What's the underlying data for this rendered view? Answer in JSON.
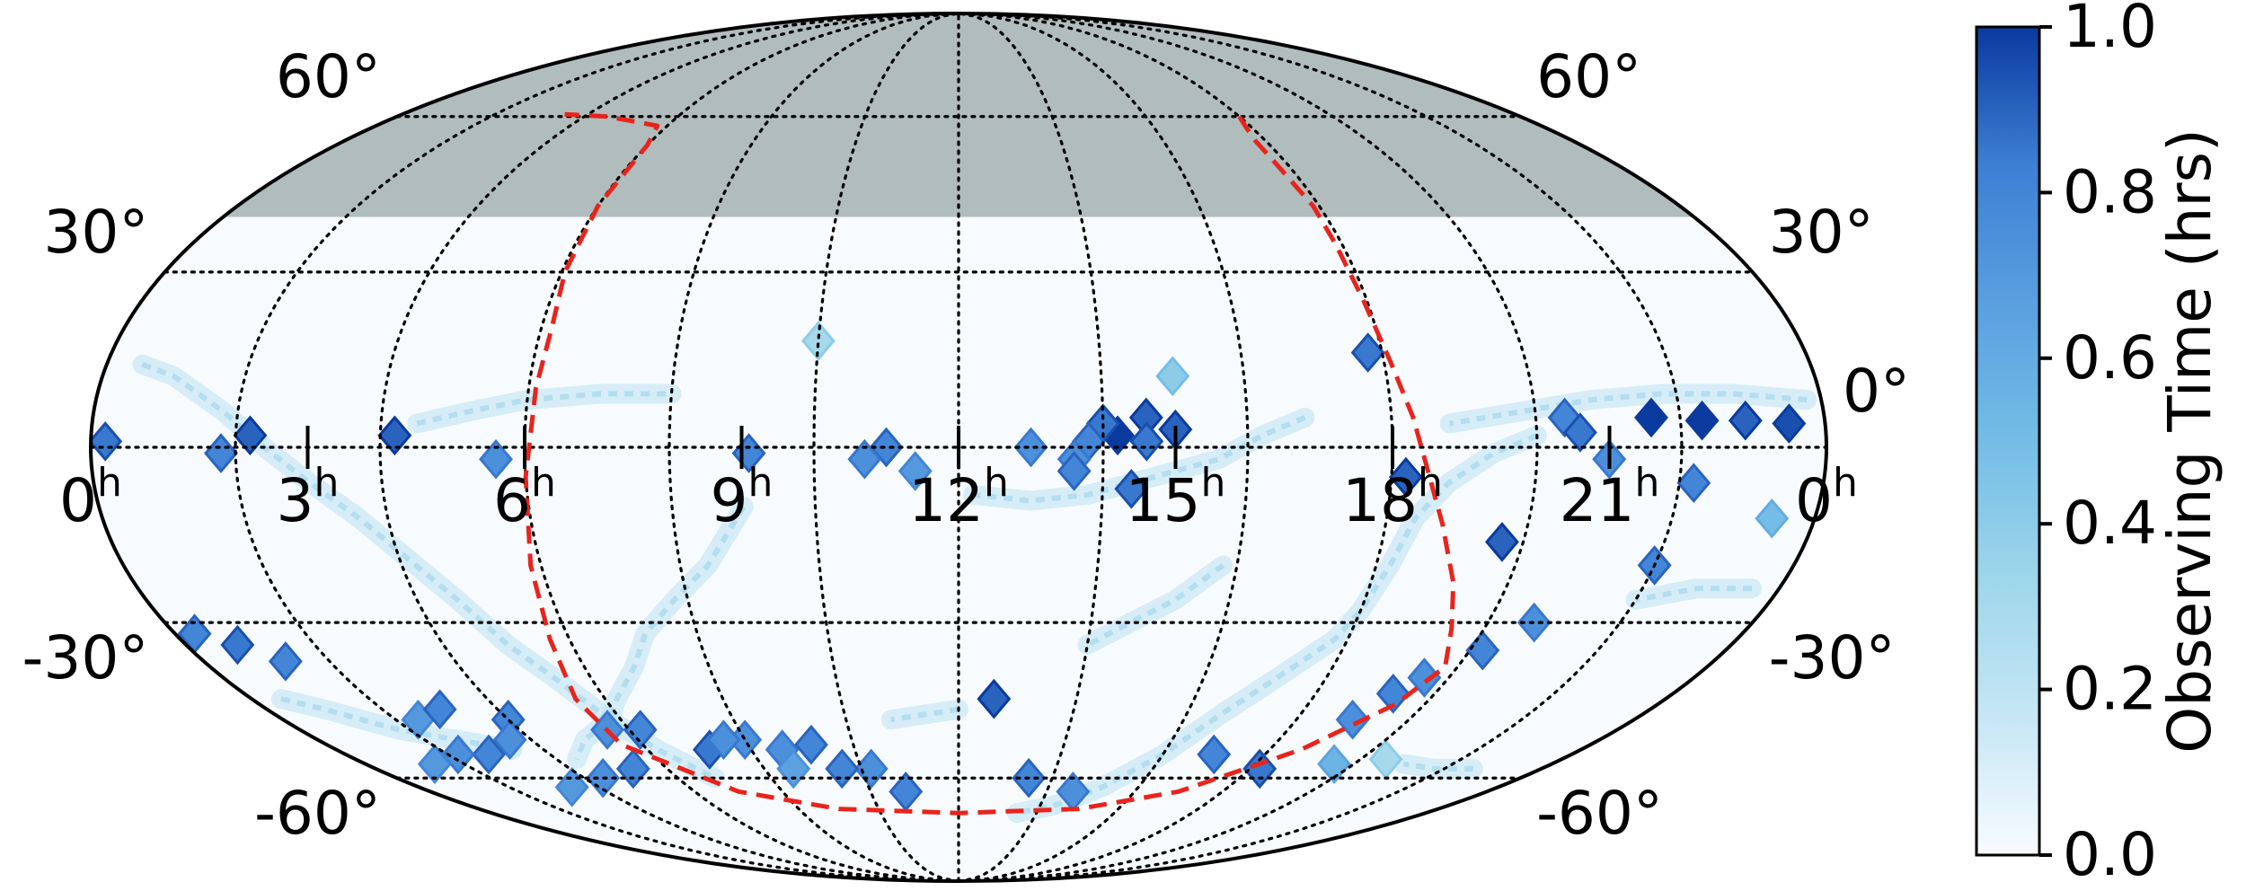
{
  "chart_data": {
    "type": "heatmap",
    "projection": "mollweide",
    "ra_ticks": [
      {
        "hours": 0,
        "text": "0",
        "sup": "h"
      },
      {
        "hours": 21,
        "text": "21",
        "sup": "h"
      },
      {
        "hours": 18,
        "text": "18",
        "sup": "h"
      },
      {
        "hours": 15,
        "text": "15",
        "sup": "h"
      },
      {
        "hours": 12,
        "text": "12",
        "sup": "h"
      },
      {
        "hours": 9,
        "text": "9",
        "sup": "h"
      },
      {
        "hours": 6,
        "text": "6",
        "sup": "h"
      },
      {
        "hours": 3,
        "text": "3",
        "sup": "h"
      },
      {
        "hours": 0,
        "text": "0",
        "sup": "h"
      }
    ],
    "dec_ticks": [
      {
        "deg": 60,
        "text": "60°"
      },
      {
        "deg": 30,
        "text": "30°"
      },
      {
        "deg": 0,
        "text": "0°"
      },
      {
        "deg": -30,
        "text": "-30°"
      },
      {
        "deg": -60,
        "text": "-60°"
      }
    ],
    "grid": true,
    "masked_region": {
      "dec_min": 40,
      "dec_max": 90,
      "color": "#b1bcbc"
    },
    "boundary_curve": {
      "style": "dashed",
      "color": "#e8241c",
      "points": [
        [
          18.0,
          60
        ],
        [
          17.9,
          58
        ],
        [
          17.8,
          55
        ],
        [
          17.8,
          50
        ],
        [
          17.9,
          42
        ],
        [
          17.9,
          35
        ],
        [
          17.95,
          25
        ],
        [
          18.1,
          14
        ],
        [
          18.3,
          5
        ],
        [
          18.5,
          -4
        ],
        [
          18.8,
          -13
        ],
        [
          19.2,
          -23
        ],
        [
          19.5,
          -31
        ],
        [
          19.8,
          -38
        ],
        [
          19.5,
          -45
        ],
        [
          18.6,
          -54
        ],
        [
          17.0,
          -63
        ],
        [
          15.0,
          -67
        ],
        [
          12.0,
          -68
        ],
        [
          9.0,
          -67
        ],
        [
          7.0,
          -63
        ],
        [
          5.6,
          -53
        ],
        [
          5.5,
          -44
        ],
        [
          5.7,
          -33
        ],
        [
          5.85,
          -20
        ],
        [
          6.0,
          -5
        ],
        [
          6.1,
          10
        ],
        [
          6.15,
          20
        ],
        [
          6.05,
          30
        ],
        [
          6.0,
          42
        ],
        [
          6.0,
          54
        ],
        [
          5.8,
          58
        ],
        [
          4.5,
          60
        ],
        [
          3.5,
          60.5
        ]
      ]
    },
    "pointings": [
      [
        21.6,
        5,
        1.0
      ],
      [
        22.3,
        4.5,
        1.0
      ],
      [
        22.9,
        4.5,
        0.9
      ],
      [
        23.5,
        4,
        0.95
      ],
      [
        20.4,
        5,
        0.8
      ],
      [
        20.6,
        2.5,
        0.85
      ],
      [
        21.0,
        -2,
        0.75
      ],
      [
        22.2,
        -6,
        0.8
      ],
      [
        23.4,
        -12,
        0.5
      ],
      [
        19.7,
        -16,
        0.9
      ],
      [
        18.2,
        -5,
        0.9
      ],
      [
        17.8,
        16,
        0.85
      ],
      [
        22.0,
        -20,
        0.8
      ],
      [
        20.7,
        -30,
        0.75
      ],
      [
        20.2,
        -35,
        0.8
      ],
      [
        19.6,
        -40,
        0.75
      ],
      [
        19.3,
        -43,
        0.8
      ],
      [
        19.0,
        -48,
        0.75
      ],
      [
        17.0,
        -55,
        0.8
      ],
      [
        18.2,
        -58,
        0.85
      ],
      [
        19.6,
        -57,
        0.55
      ],
      [
        20.5,
        -56,
        0.3
      ],
      [
        15.0,
        3,
        0.9
      ],
      [
        14.6,
        5,
        0.9
      ],
      [
        14.2,
        2,
        1.0
      ],
      [
        14.0,
        4,
        0.85
      ],
      [
        13.8,
        1,
        0.8
      ],
      [
        14.6,
        1,
        0.85
      ],
      [
        13.6,
        -2,
        0.75
      ],
      [
        14.4,
        -7,
        0.85
      ],
      [
        13.6,
        -4,
        0.8
      ],
      [
        13.0,
        0,
        0.75
      ],
      [
        15.0,
        12,
        0.4
      ],
      [
        11.0,
        0,
        0.8
      ],
      [
        10.7,
        -2,
        0.75
      ],
      [
        11.4,
        -4,
        0.7
      ],
      [
        9.1,
        -1,
        0.8
      ],
      [
        12.6,
        -44,
        0.9
      ],
      [
        10.0,
        18,
        0.3
      ],
      [
        13.5,
        -60,
        0.8
      ],
      [
        14.6,
        -63,
        0.75
      ],
      [
        10.8,
        -63,
        0.8
      ],
      [
        10.2,
        -58,
        0.75
      ],
      [
        9.6,
        -58,
        0.8
      ],
      [
        8.6,
        -54,
        0.75
      ],
      [
        9.2,
        -53,
        0.8
      ],
      [
        8.0,
        -52,
        0.75
      ],
      [
        8.6,
        -58,
        0.65
      ],
      [
        7.2,
        -54,
        0.85
      ],
      [
        7.6,
        -52,
        0.75
      ],
      [
        6.2,
        -50,
        0.8
      ],
      [
        5.6,
        -50,
        0.75
      ],
      [
        4.0,
        -48,
        0.8
      ],
      [
        3.6,
        -52,
        0.75
      ],
      [
        2.8,
        -55,
        0.8
      ],
      [
        2.2,
        -55,
        0.75
      ],
      [
        1.4,
        -57,
        0.7
      ],
      [
        2.4,
        -48,
        0.7
      ],
      [
        3.0,
        -46,
        0.8
      ],
      [
        5.6,
        -2,
        0.75
      ],
      [
        4.2,
        2,
        0.9
      ],
      [
        2.2,
        2,
        0.9
      ],
      [
        1.8,
        -1,
        0.8
      ],
      [
        0.2,
        1,
        0.85
      ],
      [
        0.8,
        -34,
        0.85
      ],
      [
        0.3,
        -32,
        0.8
      ],
      [
        1.3,
        -37,
        0.8
      ],
      [
        5.3,
        -58,
        0.8
      ],
      [
        4.4,
        -60,
        0.75
      ],
      [
        3.4,
        -62,
        0.7
      ]
    ],
    "faint_tracks": [
      [
        [
          23.8,
          8
        ],
        [
          22.8,
          9
        ],
        [
          21.8,
          9
        ],
        [
          20.8,
          8
        ],
        [
          19.8,
          6
        ],
        [
          18.8,
          4
        ]
      ],
      [
        [
          20.0,
          2
        ],
        [
          19.4,
          -1
        ],
        [
          18.8,
          -6
        ],
        [
          18.4,
          -12
        ],
        [
          18.2,
          -20
        ],
        [
          18.0,
          -28
        ],
        [
          17.8,
          -33
        ],
        [
          17.2,
          -40
        ],
        [
          16.6,
          -47
        ],
        [
          16.0,
          -55
        ],
        [
          15.2,
          -62
        ],
        [
          14.4,
          -66
        ],
        [
          13.5,
          -68
        ]
      ],
      [
        [
          16.8,
          5
        ],
        [
          16.2,
          2
        ],
        [
          15.6,
          -2
        ],
        [
          15.0,
          -4
        ],
        [
          14.4,
          -6
        ],
        [
          13.8,
          -8
        ],
        [
          13.0,
          -9
        ],
        [
          12.2,
          -8
        ]
      ],
      [
        [
          15.8,
          -20
        ],
        [
          15.2,
          -26
        ],
        [
          14.6,
          -30
        ],
        [
          14.0,
          -34
        ]
      ],
      [
        [
          9.0,
          -10
        ],
        [
          8.4,
          -20
        ],
        [
          7.8,
          -26
        ],
        [
          7.2,
          -32
        ],
        [
          6.8,
          -38
        ],
        [
          6.2,
          -44
        ],
        [
          5.8,
          -48
        ],
        [
          5.0,
          -52
        ],
        [
          4.4,
          -56
        ]
      ],
      [
        [
          0.5,
          14
        ],
        [
          1.0,
          12
        ],
        [
          1.8,
          6
        ],
        [
          2.4,
          0
        ],
        [
          3.0,
          -6
        ],
        [
          3.6,
          -12
        ],
        [
          4.2,
          -20
        ],
        [
          4.6,
          -26
        ],
        [
          5.0,
          -34
        ],
        [
          5.4,
          -40
        ],
        [
          5.8,
          -48
        ],
        [
          6.2,
          -54
        ],
        [
          6.8,
          -60
        ]
      ],
      [
        [
          4.5,
          4
        ],
        [
          5.2,
          6
        ],
        [
          6.0,
          8
        ],
        [
          7.0,
          9
        ],
        [
          8.0,
          9
        ]
      ],
      [
        [
          23.6,
          -24
        ],
        [
          22.8,
          -24
        ],
        [
          22.0,
          -26
        ]
      ],
      [
        [
          0.5,
          -44
        ],
        [
          1.0,
          -46
        ],
        [
          1.8,
          -50
        ],
        [
          2.6,
          -52
        ],
        [
          3.4,
          -54
        ]
      ],
      [
        [
          22.6,
          -58
        ],
        [
          21.8,
          -58
        ],
        [
          21.0,
          -57
        ]
      ],
      [
        [
          12.0,
          -46
        ],
        [
          11.4,
          -47
        ],
        [
          10.8,
          -48
        ]
      ]
    ],
    "colorbar": {
      "label": "Observing Time (hrs)",
      "min": 0.0,
      "max": 1.0,
      "ticks": [
        "0.0",
        "0.2",
        "0.4",
        "0.6",
        "0.8",
        "1.0"
      ],
      "colormap": [
        "#f7fbff",
        "#c6e6f5",
        "#9ed6ea",
        "#74bde6",
        "#5a9fdf",
        "#3d7fd4",
        "#0a3a9e"
      ]
    }
  }
}
